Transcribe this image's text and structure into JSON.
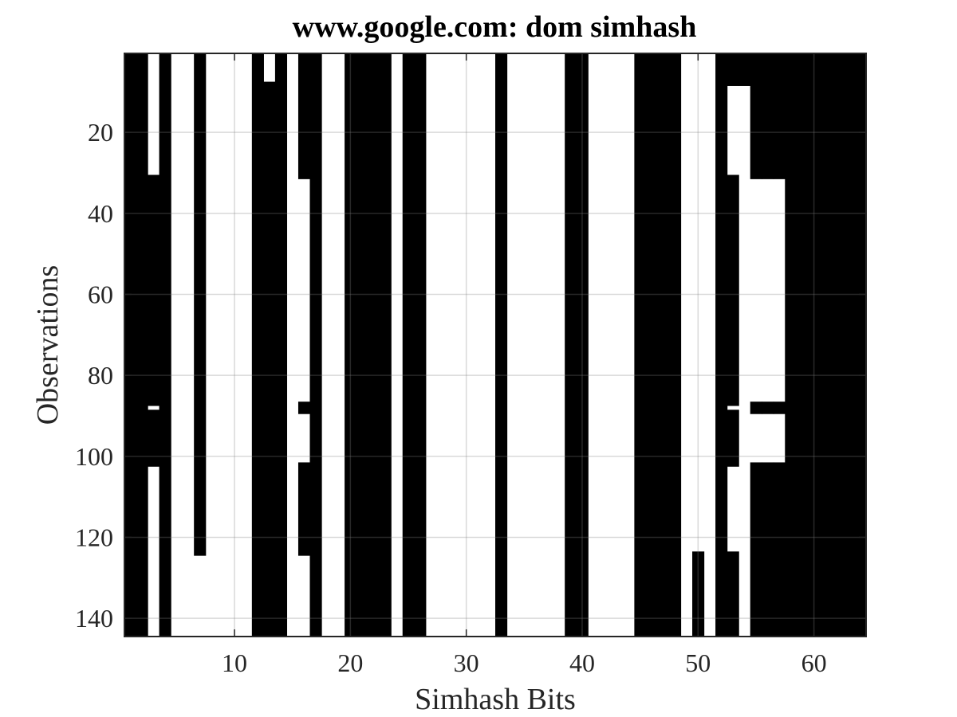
{
  "chart_data": {
    "type": "heatmap",
    "title": "www.google.com: dom simhash",
    "xlabel": "Simhash Bits",
    "ylabel": "Observations",
    "xlim": [
      0.5,
      64.5
    ],
    "ylim": [
      0.5,
      144.5
    ],
    "y_reversed": true,
    "xticks": [
      10,
      20,
      30,
      40,
      50,
      60
    ],
    "yticks": [
      20,
      40,
      60,
      80,
      100,
      120,
      140
    ],
    "grid": true,
    "n_bits": 64,
    "n_observations": 144,
    "colormap": {
      "0": "white",
      "1": "black"
    },
    "always_one_bits": [
      1,
      2,
      4,
      12,
      14,
      17,
      20,
      21,
      22,
      23,
      25,
      26,
      33,
      39,
      40,
      45,
      46,
      47,
      48,
      52,
      58,
      59,
      60,
      61,
      62,
      63,
      64
    ],
    "varying_bits": [
      {
        "bit": 3,
        "one_ranges": [
          [
            31,
            87
          ],
          [
            89,
            102
          ]
        ]
      },
      {
        "bit": 7,
        "one_ranges": [
          [
            1,
            124
          ]
        ]
      },
      {
        "bit": 13,
        "one_ranges": [
          [
            8,
            144
          ]
        ]
      },
      {
        "bit": 16,
        "one_ranges": [
          [
            1,
            31
          ],
          [
            87,
            89
          ],
          [
            102,
            124
          ]
        ]
      },
      {
        "bit": 50,
        "one_ranges": [
          [
            124,
            144
          ]
        ]
      },
      {
        "bit": 53,
        "one_ranges": [
          [
            1,
            8
          ],
          [
            31,
            87
          ],
          [
            89,
            102
          ],
          [
            124,
            144
          ]
        ]
      },
      {
        "bit": 54,
        "one_ranges": [
          [
            1,
            8
          ]
        ]
      },
      {
        "bit": 55,
        "one_ranges": [
          [
            1,
            31
          ],
          [
            87,
            89
          ],
          [
            102,
            144
          ]
        ]
      },
      {
        "bit": 56,
        "one_ranges": [
          [
            1,
            31
          ],
          [
            87,
            89
          ],
          [
            102,
            144
          ]
        ]
      },
      {
        "bit": 57,
        "one_ranges": [
          [
            1,
            31
          ],
          [
            87,
            89
          ],
          [
            102,
            144
          ]
        ]
      }
    ]
  }
}
